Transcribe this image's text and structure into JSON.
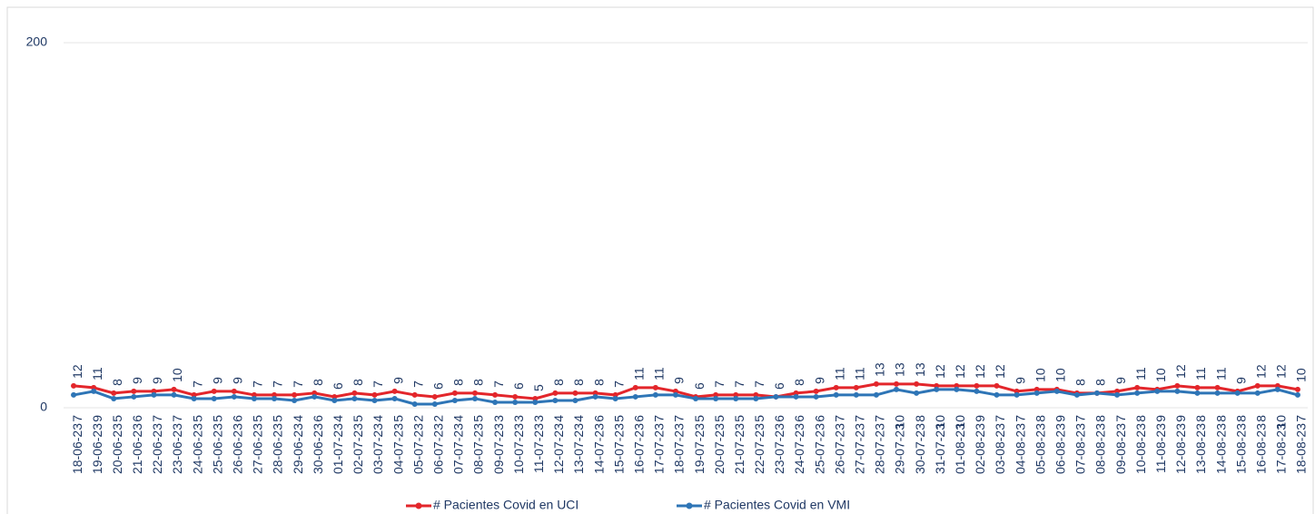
{
  "chart_data": {
    "type": "line",
    "categories": [
      "18-06-23",
      "19-06-23",
      "20-06-23",
      "21-06-23",
      "22-06-23",
      "23-06-23",
      "24-06-23",
      "25-06-23",
      "26-06-23",
      "27-06-23",
      "28-06-23",
      "29-06-23",
      "30-06-23",
      "01-07-23",
      "02-07-23",
      "03-07-23",
      "04-07-23",
      "05-07-23",
      "06-07-23",
      "07-07-23",
      "08-07-23",
      "09-07-23",
      "10-07-23",
      "11-07-23",
      "12-07-23",
      "13-07-23",
      "14-07-23",
      "15-07-23",
      "16-07-23",
      "17-07-23",
      "18-07-23",
      "19-07-23",
      "20-07-23",
      "21-07-23",
      "22-07-23",
      "23-07-23",
      "24-07-23",
      "25-07-23",
      "26-07-23",
      "27-07-23",
      "28-07-23",
      "29-07-23",
      "30-07-23",
      "31-07-23",
      "01-08-23",
      "02-08-23",
      "03-08-23",
      "04-08-23",
      "05-08-23",
      "06-08-23",
      "07-08-23",
      "08-08-23",
      "09-08-23",
      "10-08-23",
      "11-08-23",
      "12-08-23",
      "13-08-23",
      "14-08-23",
      "15-08-23",
      "16-08-23",
      "17-08-23",
      "18-08-23"
    ],
    "series": [
      {
        "name": "# Pacientes Covid en UCI",
        "color": "#e3262b",
        "values": [
          12,
          11,
          8,
          9,
          9,
          10,
          7,
          9,
          9,
          7,
          7,
          7,
          8,
          6,
          8,
          7,
          9,
          7,
          6,
          8,
          8,
          7,
          6,
          5,
          8,
          8,
          8,
          7,
          11,
          11,
          9,
          6,
          7,
          7,
          7,
          6,
          8,
          9,
          11,
          11,
          13,
          13,
          13,
          12,
          12,
          12,
          12,
          9,
          10,
          10,
          8,
          8,
          9,
          11,
          10,
          12,
          11,
          11,
          9,
          12,
          12,
          10
        ]
      },
      {
        "name": "# Pacientes Covid en VMI",
        "color": "#2e75b6",
        "values": [
          7,
          9,
          5,
          6,
          7,
          7,
          5,
          5,
          6,
          5,
          5,
          4,
          6,
          4,
          5,
          4,
          5,
          2,
          2,
          4,
          5,
          3,
          3,
          3,
          4,
          4,
          6,
          5,
          6,
          7,
          7,
          5,
          5,
          5,
          5,
          6,
          6,
          6,
          7,
          7,
          7,
          10,
          8,
          10,
          10,
          9,
          7,
          7,
          8,
          9,
          7,
          8,
          7,
          8,
          9,
          9,
          8,
          8,
          8,
          8,
          10,
          7
        ]
      }
    ],
    "ylim": [
      0,
      200
    ],
    "yticks": [
      0,
      200
    ],
    "grid": true,
    "legend": "bottom"
  }
}
